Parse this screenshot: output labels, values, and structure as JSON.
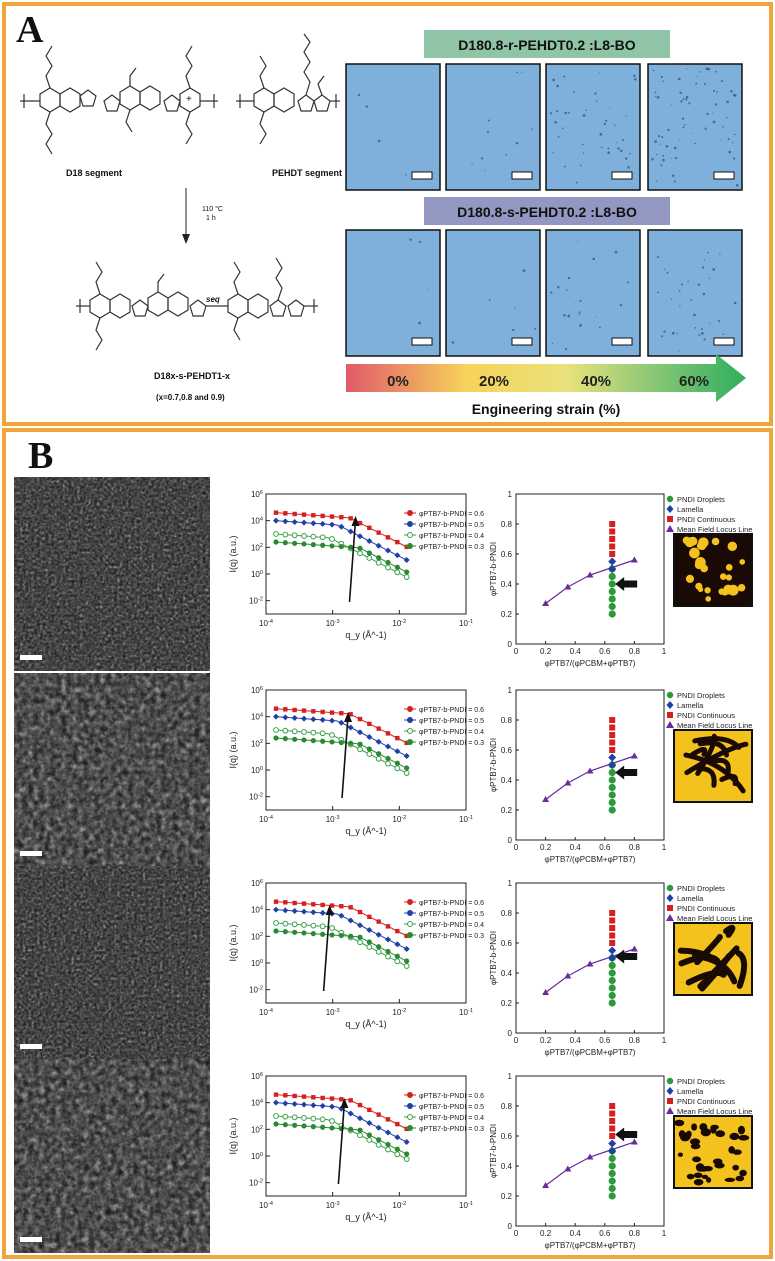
{
  "panel_a": {
    "label": "A",
    "scheme": {
      "d18_label": "D18 segment",
      "pehdt_label": "PEHDT segment",
      "plus": "+",
      "temp": "110 °C",
      "time": "1 h",
      "seq": "seq",
      "product_label": "D18x-s-PEHDT1-x",
      "x_values": "(x=0.7,0.8 and 0.9)"
    },
    "random_title": "D180.8-r-PEHDT0.2 :L8-BO",
    "sequential_title": "D180.8-s-PEHDT0.2 :L8-BO",
    "strain_ticks": [
      "0%",
      "20%",
      "40%",
      "60%"
    ],
    "strain_label": "Engineering strain (%)",
    "colors": {
      "frame": "#f0a43a",
      "random_banner": "#8fc4a6",
      "sequential_banner": "#9298c2",
      "film": "#7fb0dc"
    }
  },
  "panel_b": {
    "label": "B",
    "scattering_plots": {
      "x_label": "q_y (Å^-1)",
      "y_label": "I(q) (a.u.)",
      "x_ticks": [
        "10^-4",
        "10^-3",
        "10^-2",
        "10^-1"
      ],
      "y_ticks": [
        "10^6",
        "10^4",
        "10^2",
        "10^0",
        "10^-2"
      ],
      "legend": [
        "φPTB7-b-PNDI = 0.6",
        "φPTB7-b-PNDI = 0.5",
        "φPTB7-b-PNDI = 0.4",
        "φPTB7-b-PNDI = 0.3"
      ],
      "arrow_q": [
        0.0022,
        0.0017,
        0.0009,
        0.0015
      ]
    },
    "phase_plots": {
      "x_label": "φPTB7/(φPCBM+φPTB7)",
      "y_label": "φPTB7-b-PNDI",
      "x_ticks": [
        "0",
        "0.2",
        "0.4",
        "0.6",
        "0.8",
        "1"
      ],
      "y_ticks": [
        "0",
        "0.2",
        "0.4",
        "0.6",
        "0.8",
        "1"
      ],
      "legend": [
        "PNDI Droplets",
        "Lamella",
        "PNDI Continuous",
        "Mean Field Locus Line"
      ],
      "arrow_phi": [
        0.4,
        0.45,
        0.51,
        0.61
      ]
    },
    "chart_data": {
      "type": "scatter",
      "x_axis": "φPTB7/(φPCBM+φPTB7)",
      "y_axis": "φPTB7-b-PNDI",
      "xlim": [
        0,
        1
      ],
      "ylim": [
        0,
        1
      ],
      "series": [
        {
          "name": "PNDI Droplets",
          "x": [
            0.65,
            0.65,
            0.65,
            0.65,
            0.65,
            0.65,
            0.65
          ],
          "y": [
            0.2,
            0.25,
            0.3,
            0.35,
            0.4,
            0.45,
            0.5
          ]
        },
        {
          "name": "Lamella",
          "x": [
            0.65,
            0.65
          ],
          "y": [
            0.5,
            0.55
          ]
        },
        {
          "name": "PNDI Continuous",
          "x": [
            0.65,
            0.65,
            0.65,
            0.65,
            0.65
          ],
          "y": [
            0.6,
            0.65,
            0.7,
            0.75,
            0.8
          ]
        },
        {
          "name": "Mean Field Locus Line",
          "x": [
            0.2,
            0.35,
            0.5,
            0.65,
            0.8
          ],
          "y": [
            0.27,
            0.38,
            0.46,
            0.51,
            0.56
          ]
        }
      ]
    }
  }
}
